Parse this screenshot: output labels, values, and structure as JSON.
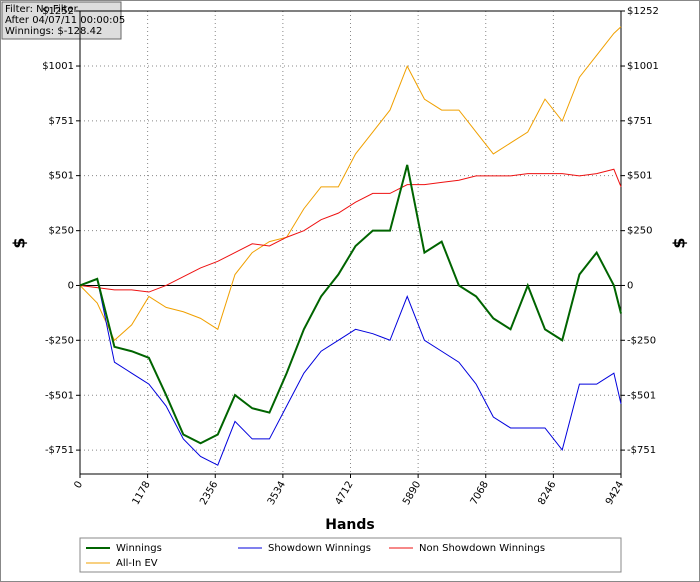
{
  "chart_data": {
    "type": "line",
    "annotations": [
      "Filter: No Filter",
      "After 04/07/11 00:00:05",
      "Winnings: $-128.42"
    ],
    "x_label": "Hands",
    "y_label": "$",
    "y2_label": "$",
    "x": [
      0,
      300,
      600,
      900,
      1200,
      1500,
      1800,
      2100,
      2400,
      2700,
      3000,
      3300,
      3600,
      3900,
      4200,
      4500,
      4800,
      5100,
      5400,
      5700,
      6000,
      6300,
      6600,
      6900,
      7200,
      7500,
      7800,
      8100,
      8400,
      8700,
      9000,
      9300,
      9424
    ],
    "series": [
      {
        "name": "Winnings",
        "color": "#006400",
        "width": 2,
        "values": [
          0,
          30,
          -280,
          -300,
          -330,
          -500,
          -680,
          -720,
          -680,
          -500,
          -560,
          -580,
          -400,
          -200,
          -50,
          50,
          180,
          250,
          250,
          550,
          150,
          200,
          0,
          -50,
          -150,
          -200,
          0,
          -200,
          -250,
          50,
          150,
          0,
          -128
        ]
      },
      {
        "name": "Showdown Winnings",
        "color": "#0000dd",
        "width": 1,
        "values": [
          0,
          30,
          -350,
          -400,
          -450,
          -550,
          -700,
          -780,
          -820,
          -620,
          -700,
          -700,
          -550,
          -400,
          -300,
          -250,
          -200,
          -220,
          -250,
          -50,
          -250,
          -300,
          -350,
          -450,
          -600,
          -650,
          -650,
          -650,
          -750,
          -450,
          -450,
          -400,
          -540
        ]
      },
      {
        "name": "Non Showdown Winnings",
        "color": "#ee1111",
        "width": 1,
        "values": [
          0,
          -10,
          -20,
          -20,
          -30,
          0,
          40,
          80,
          110,
          150,
          190,
          180,
          220,
          250,
          300,
          330,
          380,
          420,
          420,
          460,
          460,
          470,
          480,
          500,
          500,
          500,
          510,
          510,
          510,
          500,
          510,
          530,
          450
        ]
      },
      {
        "name": "All-In EV",
        "color": "#f0a000",
        "width": 1,
        "values": [
          0,
          -80,
          -250,
          -180,
          -50,
          -100,
          -120,
          -150,
          -200,
          50,
          150,
          200,
          220,
          350,
          450,
          450,
          600,
          700,
          800,
          1000,
          850,
          800,
          800,
          700,
          600,
          650,
          700,
          850,
          750,
          950,
          1050,
          1150,
          1180
        ]
      }
    ],
    "xlim": [
      0,
      9424
    ],
    "xticks": [
      0,
      1178,
      2356,
      3534,
      4712,
      5890,
      7068,
      8246,
      9424
    ],
    "ylim": [
      -860,
      1252
    ],
    "yticks": [
      {
        "value": -751,
        "label": "-$751"
      },
      {
        "value": -501,
        "label": "-$501"
      },
      {
        "value": -250,
        "label": "-$250"
      },
      0,
      {
        "value": 250,
        "label": "$250"
      },
      {
        "value": 501,
        "label": "$501"
      },
      {
        "value": 751,
        "label": "$751"
      },
      {
        "value": 1001,
        "label": "$1001"
      },
      {
        "value": 1252,
        "label": "$1252"
      }
    ],
    "grid": true,
    "zero_line": true
  }
}
